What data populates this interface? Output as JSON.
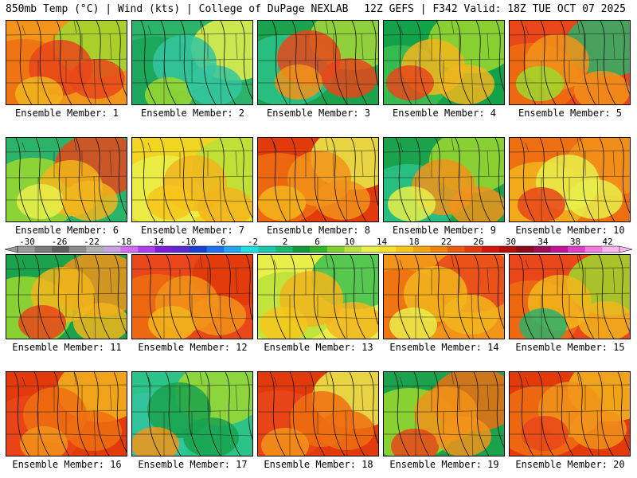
{
  "header": {
    "left": "850mb Temp (°C) | Wind (kts) | College of DuPage NEXLAB",
    "right": "12Z GEFS | F342 Valid: 18Z TUE OCT 07 2025"
  },
  "colorbar": {
    "labels": [
      "-30",
      "-26",
      "-22",
      "-18",
      "-14",
      "-10",
      "-6",
      "-2",
      "2",
      "6",
      "10",
      "14",
      "18",
      "22",
      "26",
      "30",
      "34",
      "38",
      "42"
    ],
    "colors": [
      "#9a9a9a",
      "#7a7a7a",
      "#5e5e5e",
      "#8a8a8a",
      "#b0b0b0",
      "#c6a2e0",
      "#cf6ef0",
      "#b03ef0",
      "#7e1cdb",
      "#5f27cf",
      "#1c3fd6",
      "#1f6ff0",
      "#22a5f0",
      "#1ee0e0",
      "#17c9a9",
      "#1ab86a",
      "#0e9a3c",
      "#2fb52b",
      "#7cd22a",
      "#b9e23a",
      "#e9ef4a",
      "#f7e02a",
      "#f7c51a",
      "#f5a411",
      "#f08209",
      "#ea5a0a",
      "#e23a0a",
      "#d6160c",
      "#b50c0c",
      "#8a0a1a",
      "#a00a5a",
      "#c21296",
      "#e03cc6",
      "#f07adc",
      "#f6b6ec"
    ]
  },
  "panels": [
    {
      "label": "Ensemble Member: 1",
      "colors": [
        "#f2931a",
        "#ee6e12",
        "#e9461a",
        "#f2b51c",
        "#9ed82e"
      ],
      "warm": 0.7
    },
    {
      "label": "Ensemble Member: 2",
      "colors": [
        "#2bb36a",
        "#1ba45a",
        "#34c6a0",
        "#9ed82e",
        "#e9ef4a"
      ],
      "warm": 0.3
    },
    {
      "label": "Ensemble Member: 3",
      "colors": [
        "#1aa24c",
        "#2bc38a",
        "#e9461a",
        "#f2931a",
        "#a4d83a"
      ],
      "warm": 0.4
    },
    {
      "label": "Ensemble Member: 4",
      "colors": [
        "#12a24a",
        "#3cbf50",
        "#f2b51c",
        "#e9461a",
        "#9ed82e"
      ],
      "warm": 0.45
    },
    {
      "label": "Ensemble Member: 5",
      "colors": [
        "#e9461a",
        "#ee6e12",
        "#f2931a",
        "#9ed82e",
        "#2bb36a"
      ],
      "warm": 0.7
    },
    {
      "label": "Ensemble Member: 6",
      "colors": [
        "#2bb36a",
        "#9ed82e",
        "#f2b51c",
        "#e9ef4a",
        "#e9461a"
      ],
      "warm": 0.4
    },
    {
      "label": "Ensemble Member: 7",
      "colors": [
        "#f2d520",
        "#e9ef4a",
        "#f2b51c",
        "#f7c51a",
        "#b9e23a"
      ],
      "warm": 0.5
    },
    {
      "label": "Ensemble Member: 8",
      "colors": [
        "#e23a0a",
        "#ee6e12",
        "#f2931a",
        "#f2b51c",
        "#e9ef4a"
      ],
      "warm": 0.75
    },
    {
      "label": "Ensemble Member: 9",
      "colors": [
        "#1aa24c",
        "#2bc38a",
        "#f2931a",
        "#e9ef4a",
        "#9ed82e"
      ],
      "warm": 0.35
    },
    {
      "label": "Ensemble Member: 10",
      "colors": [
        "#ee6e12",
        "#f2b51c",
        "#e9ef4a",
        "#e9461a",
        "#f2931a"
      ],
      "warm": 0.6
    },
    {
      "label": "Ensemble Member: 11",
      "colors": [
        "#1aa24c",
        "#9ed82e",
        "#f2b51c",
        "#e9461a",
        "#f2931a"
      ],
      "warm": 0.55
    },
    {
      "label": "Ensemble Member: 12",
      "colors": [
        "#e9461a",
        "#ee6e12",
        "#f2931a",
        "#f2b51c",
        "#e23a0a"
      ],
      "warm": 0.8
    },
    {
      "label": "Ensemble Member: 13",
      "colors": [
        "#e9ef4a",
        "#b9e23a",
        "#f2b51c",
        "#f7c51a",
        "#3cbf50"
      ],
      "warm": 0.45
    },
    {
      "label": "Ensemble Member: 14",
      "colors": [
        "#f2931a",
        "#ee6e12",
        "#f2b51c",
        "#e9ef4a",
        "#e9461a"
      ],
      "warm": 0.65
    },
    {
      "label": "Ensemble Member: 15",
      "colors": [
        "#e9461a",
        "#ee6e12",
        "#f2b51c",
        "#2bb36a",
        "#9ed82e"
      ],
      "warm": 0.6
    },
    {
      "label": "Ensemble Member: 16",
      "colors": [
        "#e23a0a",
        "#e9461a",
        "#ee6e12",
        "#f2931a",
        "#f2b51c"
      ],
      "warm": 0.85
    },
    {
      "label": "Ensemble Member: 17",
      "colors": [
        "#2bc38a",
        "#34c6a0",
        "#1aa24c",
        "#f2931a",
        "#9ed82e"
      ],
      "warm": 0.35
    },
    {
      "label": "Ensemble Member: 18",
      "colors": [
        "#e23a0a",
        "#e9461a",
        "#ee6e12",
        "#f2931a",
        "#e9ef4a"
      ],
      "warm": 0.8
    },
    {
      "label": "Ensemble Member: 19",
      "colors": [
        "#1aa24c",
        "#9ed82e",
        "#f2931a",
        "#e9461a",
        "#ee6e12"
      ],
      "warm": 0.6
    },
    {
      "label": "Ensemble Member: 20",
      "colors": [
        "#e23a0a",
        "#ee6e12",
        "#f2931a",
        "#e9461a",
        "#f2b51c"
      ],
      "warm": 0.8
    }
  ]
}
